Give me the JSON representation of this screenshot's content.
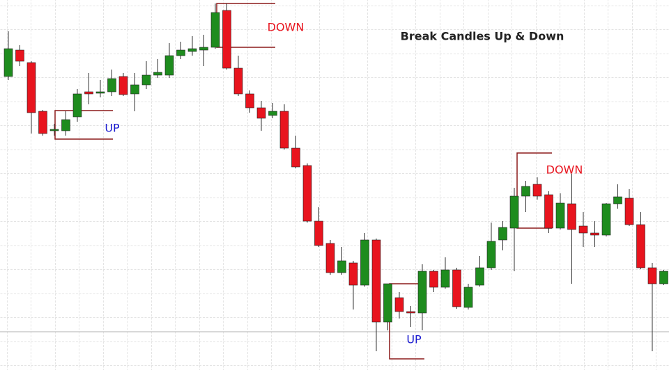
{
  "chart_data": {
    "type": "candlestick",
    "title": "Break Candles Up  & Down",
    "ylim": [
      0,
      532
    ],
    "up_color": "#1e8c1e",
    "down_color": "#e8141e",
    "open": [
      422,
      460,
      442,
      372,
      344,
      344,
      364,
      400,
      398,
      400,
      422,
      397,
      410,
      424,
      424,
      452,
      458,
      460,
      464,
      517,
      434,
      397,
      377,
      366,
      372,
      319,
      294,
      214,
      182,
      140,
      154,
      122,
      187,
      69,
      104,
      84,
      82,
      142,
      119,
      144,
      90,
      122,
      147,
      187,
      204,
      250,
      267,
      252,
      204,
      239,
      207,
      197,
      194,
      239,
      247,
      209,
      147,
      124
    ],
    "high": [
      487,
      467,
      444,
      374,
      354,
      372,
      404,
      427,
      417,
      432,
      427,
      427,
      444,
      447,
      470,
      472,
      480,
      482,
      527,
      527,
      452,
      402,
      387,
      384,
      382,
      337,
      297,
      234,
      187,
      177,
      157,
      197,
      189,
      124,
      112,
      92,
      152,
      144,
      162,
      147,
      124,
      164,
      212,
      214,
      262,
      272,
      277,
      257,
      254,
      282,
      227,
      214,
      240,
      267,
      260,
      227,
      154,
      144
    ],
    "low": [
      417,
      437,
      340,
      337,
      337,
      337,
      357,
      382,
      392,
      394,
      394,
      372,
      404,
      420,
      420,
      447,
      452,
      437,
      462,
      432,
      394,
      370,
      344,
      362,
      317,
      290,
      212,
      177,
      137,
      137,
      87,
      120,
      27,
      57,
      74,
      62,
      57,
      112,
      117,
      88,
      87,
      120,
      144,
      172,
      142,
      227,
      245,
      197,
      202,
      124,
      177,
      177,
      192,
      232,
      207,
      145,
      27,
      122
    ],
    "close": [
      462,
      444,
      370,
      340,
      346,
      360,
      397,
      397,
      400,
      419,
      396,
      410,
      424,
      428,
      452,
      460,
      462,
      464,
      514,
      434,
      397,
      377,
      362,
      372,
      319,
      292,
      214,
      179,
      140,
      157,
      122,
      187,
      69,
      124,
      84,
      82,
      142,
      119,
      144,
      91,
      119,
      147,
      185,
      205,
      250,
      264,
      250,
      204,
      240,
      202,
      197,
      194,
      239,
      249,
      209,
      147,
      124,
      142
    ],
    "annotations": [
      {
        "text": "DOWN",
        "color": "#e8141e"
      },
      {
        "text": "UP",
        "color": "#1a1ad0"
      },
      {
        "text": "UP",
        "color": "#1a1ad0"
      },
      {
        "text": "DOWN",
        "color": "#e8141e"
      }
    ]
  }
}
